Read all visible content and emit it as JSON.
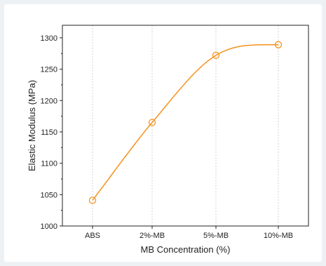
{
  "chart_data": {
    "type": "line",
    "title": "",
    "xlabel": "MB Concentration (%)",
    "ylabel": "Elastic Modulus (MPa)",
    "categories": [
      "ABS",
      "2%-MB",
      "5%-MB",
      "10%-MB"
    ],
    "series": [
      {
        "values": [
          1041,
          1165,
          1272,
          1289
        ],
        "marker": "open-circle",
        "line": "smooth-fit",
        "color": "#f5921e"
      }
    ],
    "ylim": [
      1000,
      1320
    ],
    "yticks": [
      1000,
      1050,
      1100,
      1150,
      1200,
      1250,
      1300
    ],
    "grid": "vertical-dashed",
    "legend": "none"
  }
}
